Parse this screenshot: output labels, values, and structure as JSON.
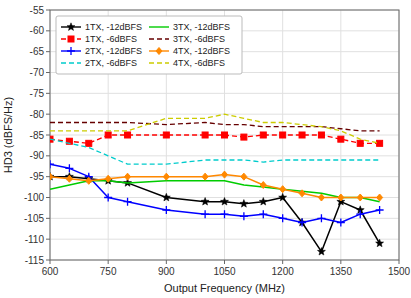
{
  "chart_data": {
    "type": "line",
    "xlabel": "Output Frequency (MHz)",
    "ylabel": "HD3 (dBFS/Hz)",
    "xlim": [
      600,
      1500
    ],
    "ylim": [
      -115,
      -55
    ],
    "xticks": [
      600,
      750,
      900,
      1050,
      1200,
      1350,
      1500
    ],
    "yticks": [
      -115,
      -110,
      -105,
      -100,
      -95,
      -90,
      -85,
      -80,
      -75,
      -70,
      -65,
      -60,
      -55
    ],
    "grid": true,
    "legend": "upper left",
    "x": [
      600,
      650,
      700,
      750,
      800,
      900,
      1000,
      1050,
      1100,
      1150,
      1200,
      1250,
      1300,
      1350,
      1400,
      1450
    ],
    "series": [
      {
        "name": "1TX, -12dBFS",
        "color": "#000000",
        "line_style": "solid",
        "marker": "star",
        "values": [
          -95,
          -95,
          -95.5,
          -96,
          -96.5,
          -100,
          -101,
          -101,
          -101.5,
          -101,
          -100,
          -106,
          -113,
          -101,
          -103,
          -111
        ]
      },
      {
        "name": "1TX, -6dBFS",
        "color": "#ff0000",
        "line_style": "dashed",
        "marker": "square",
        "values": [
          -86,
          -86.5,
          -87,
          -85,
          -85,
          -85,
          -85,
          -85,
          -85.5,
          -85,
          -85,
          -85,
          -85,
          -86,
          -87,
          -87
        ]
      },
      {
        "name": "2TX, -12dBFS",
        "color": "#0000ff",
        "line_style": "solid",
        "marker": "plus",
        "values": [
          -92,
          -93,
          -95,
          -100,
          -101,
          -103,
          -104,
          -104,
          -104.5,
          -104,
          -105,
          -106,
          -105,
          -106,
          -104,
          -103
        ]
      },
      {
        "name": "2TX, -6dBFS",
        "color": "#00cccc",
        "line_style": "dashed",
        "values": [
          -86,
          -87,
          -88,
          -90,
          -92,
          -92,
          -91,
          -91,
          -91,
          -91.5,
          -91,
          -91,
          -91,
          -91,
          -91,
          -91
        ]
      },
      {
        "name": "3TX, -12dBFS",
        "color": "#00cc00",
        "line_style": "solid",
        "values": [
          -98,
          -97,
          -96,
          -96,
          -96.5,
          -96,
          -96,
          -96,
          -97,
          -97.5,
          -98,
          -98.5,
          -99,
          -100,
          -100,
          -101
        ]
      },
      {
        "name": "3TX, -6dBFS",
        "color": "#660000",
        "line_style": "dashed",
        "values": [
          -82,
          -82,
          -82,
          -82,
          -82,
          -82.5,
          -82,
          -82.5,
          -82.5,
          -83,
          -83,
          -83,
          -83,
          -83.5,
          -84,
          -84
        ]
      },
      {
        "name": "4TX, -12dBFS",
        "color": "#ff8800",
        "line_style": "solid",
        "marker": "diamond",
        "values": [
          -95,
          -95.5,
          -96,
          -95.5,
          -95,
          -95,
          -95,
          -94.5,
          -95,
          -97,
          -98,
          -99,
          -100,
          -100,
          -100,
          -100
        ]
      },
      {
        "name": "4TX, -6dBFS",
        "color": "#cccc00",
        "line_style": "dashed",
        "values": [
          -84,
          -84,
          -84,
          -84,
          -84,
          -81,
          -81,
          -80,
          -81,
          -82,
          -82,
          -82.5,
          -83,
          -84,
          -86,
          -87
        ]
      }
    ]
  }
}
